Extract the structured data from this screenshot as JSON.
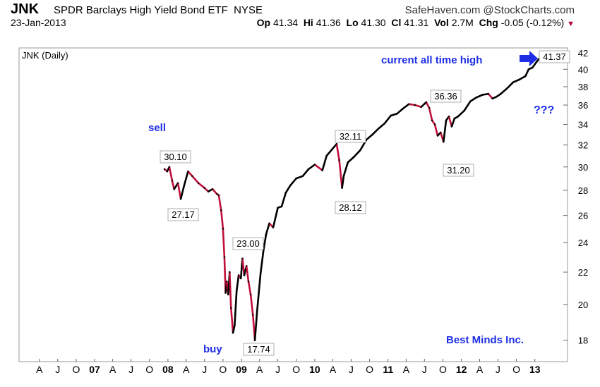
{
  "header": {
    "ticker": "JNK",
    "name": "SPDR Barclays High Yield Bond ETF",
    "exchange": "NYSE",
    "source": "SafeHaven.com @StockCharts.com",
    "date": "23-Jan-2013",
    "quote": {
      "op_label": "Op",
      "op": "41.34",
      "hi_label": "Hi",
      "hi": "41.36",
      "lo_label": "Lo",
      "lo": "41.30",
      "cl_label": "Cl",
      "cl": "41.31",
      "vol_label": "Vol",
      "vol": "2.7M",
      "chg_label": "Chg",
      "chg": "-0.05 (-0.12%)"
    }
  },
  "chart_data": {
    "type": "line",
    "panel_label": "JNK (Daily)",
    "y_scale": "log",
    "ylim": [
      16.9,
      42.6
    ],
    "y_ticks": [
      18,
      20,
      22,
      24,
      26,
      28,
      30,
      32,
      34,
      36,
      38,
      40,
      42
    ],
    "x_ticks": [
      "A",
      "J",
      "O",
      "07",
      "A",
      "J",
      "O",
      "08",
      "A",
      "J",
      "O",
      "09",
      "A",
      "J",
      "O",
      "10",
      "A",
      "J",
      "O",
      "11",
      "A",
      "J",
      "O",
      "12",
      "A",
      "J",
      "O",
      "13"
    ],
    "colors": {
      "up": "#000000",
      "down": "#c0103a",
      "annotation": "#1f2ee6"
    },
    "series": [
      {
        "x": [
          "2007-12-15",
          "2007-12-28",
          "2008-01-08",
          "2008-01-22",
          "2008-02-01",
          "2008-02-20",
          "2008-03-05",
          "2008-03-20",
          "2008-04-10",
          "2008-05-01",
          "2008-06-01",
          "2008-07-01",
          "2008-07-20",
          "2008-08-10",
          "2008-09-01",
          "2008-09-10",
          "2008-09-22",
          "2008-10-01",
          "2008-10-08",
          "2008-10-14",
          "2008-10-20",
          "2008-10-27",
          "2008-11-03",
          "2008-11-10",
          "2008-11-20",
          "2008-11-28",
          "2008-12-08",
          "2008-12-18",
          "2008-12-29",
          "2009-01-06",
          "2009-01-15",
          "2009-01-26",
          "2009-02-05",
          "2009-02-16",
          "2009-02-27",
          "2009-03-09",
          "2009-03-20",
          "2009-04-06",
          "2009-04-20",
          "2009-05-04",
          "2009-05-20",
          "2009-06-08",
          "2009-07-01",
          "2009-07-20",
          "2009-08-10",
          "2009-09-01",
          "2009-10-01",
          "2009-11-02",
          "2009-12-01",
          "2010-01-01",
          "2010-02-08",
          "2010-03-01",
          "2010-04-20",
          "2010-05-03",
          "2010-05-17",
          "2010-05-25",
          "2010-06-15",
          "2010-07-15",
          "2010-08-15",
          "2010-09-15",
          "2010-10-15",
          "2010-11-15",
          "2010-12-15",
          "2011-01-15",
          "2011-02-15",
          "2011-03-15",
          "2011-04-15",
          "2011-05-15",
          "2011-06-15",
          "2011-07-10",
          "2011-07-25",
          "2011-08-08",
          "2011-08-22",
          "2011-09-05",
          "2011-09-20",
          "2011-10-04",
          "2011-10-17",
          "2011-10-31",
          "2011-11-14",
          "2011-11-28",
          "2011-12-15",
          "2012-01-15",
          "2012-02-15",
          "2012-03-15",
          "2012-04-15",
          "2012-05-15",
          "2012-06-04",
          "2012-06-25",
          "2012-07-15",
          "2012-08-15",
          "2012-09-15",
          "2012-10-15",
          "2012-11-15",
          "2012-12-01",
          "2012-12-20",
          "2013-01-10",
          "2013-01-23"
        ],
        "y": [
          29.8,
          29.6,
          30.0,
          28.8,
          28.1,
          28.6,
          27.3,
          28.3,
          29.6,
          29.2,
          28.6,
          28.2,
          27.9,
          28.1,
          27.7,
          27.6,
          26.4,
          25.0,
          23.0,
          20.7,
          21.4,
          20.6,
          22.0,
          19.8,
          18.4,
          18.8,
          20.8,
          21.8,
          21.6,
          22.9,
          21.8,
          22.4,
          21.4,
          20.6,
          19.4,
          18.0,
          19.6,
          21.9,
          23.4,
          24.6,
          25.4,
          25.1,
          26.6,
          26.7,
          27.8,
          28.4,
          29.0,
          29.2,
          29.8,
          30.2,
          29.7,
          31.0,
          32.1,
          30.6,
          28.2,
          29.2,
          30.4,
          30.9,
          31.5,
          32.5,
          33.0,
          33.6,
          34.1,
          34.9,
          35.1,
          35.6,
          36.1,
          36.0,
          35.8,
          36.3,
          35.7,
          34.4,
          34.0,
          32.9,
          33.2,
          32.3,
          34.4,
          34.8,
          33.8,
          34.6,
          34.8,
          35.4,
          36.4,
          36.8,
          37.1,
          37.2,
          36.7,
          36.9,
          37.2,
          37.8,
          38.5,
          38.8,
          39.2,
          40.0,
          40.2,
          40.9,
          41.3
        ]
      }
    ],
    "annotations": [
      {
        "text": "30.10"
      },
      {
        "text": "27.17"
      },
      {
        "text": "23.00"
      },
      {
        "text": "17.74"
      },
      {
        "text": "32.11"
      },
      {
        "text": "28.12"
      },
      {
        "text": "36.36"
      },
      {
        "text": "31.20"
      },
      {
        "text": "41.37"
      }
    ],
    "notes": {
      "sell": "sell",
      "buy": "buy",
      "ath": "current all time high",
      "q": "???",
      "brand": "Best Minds Inc."
    }
  }
}
